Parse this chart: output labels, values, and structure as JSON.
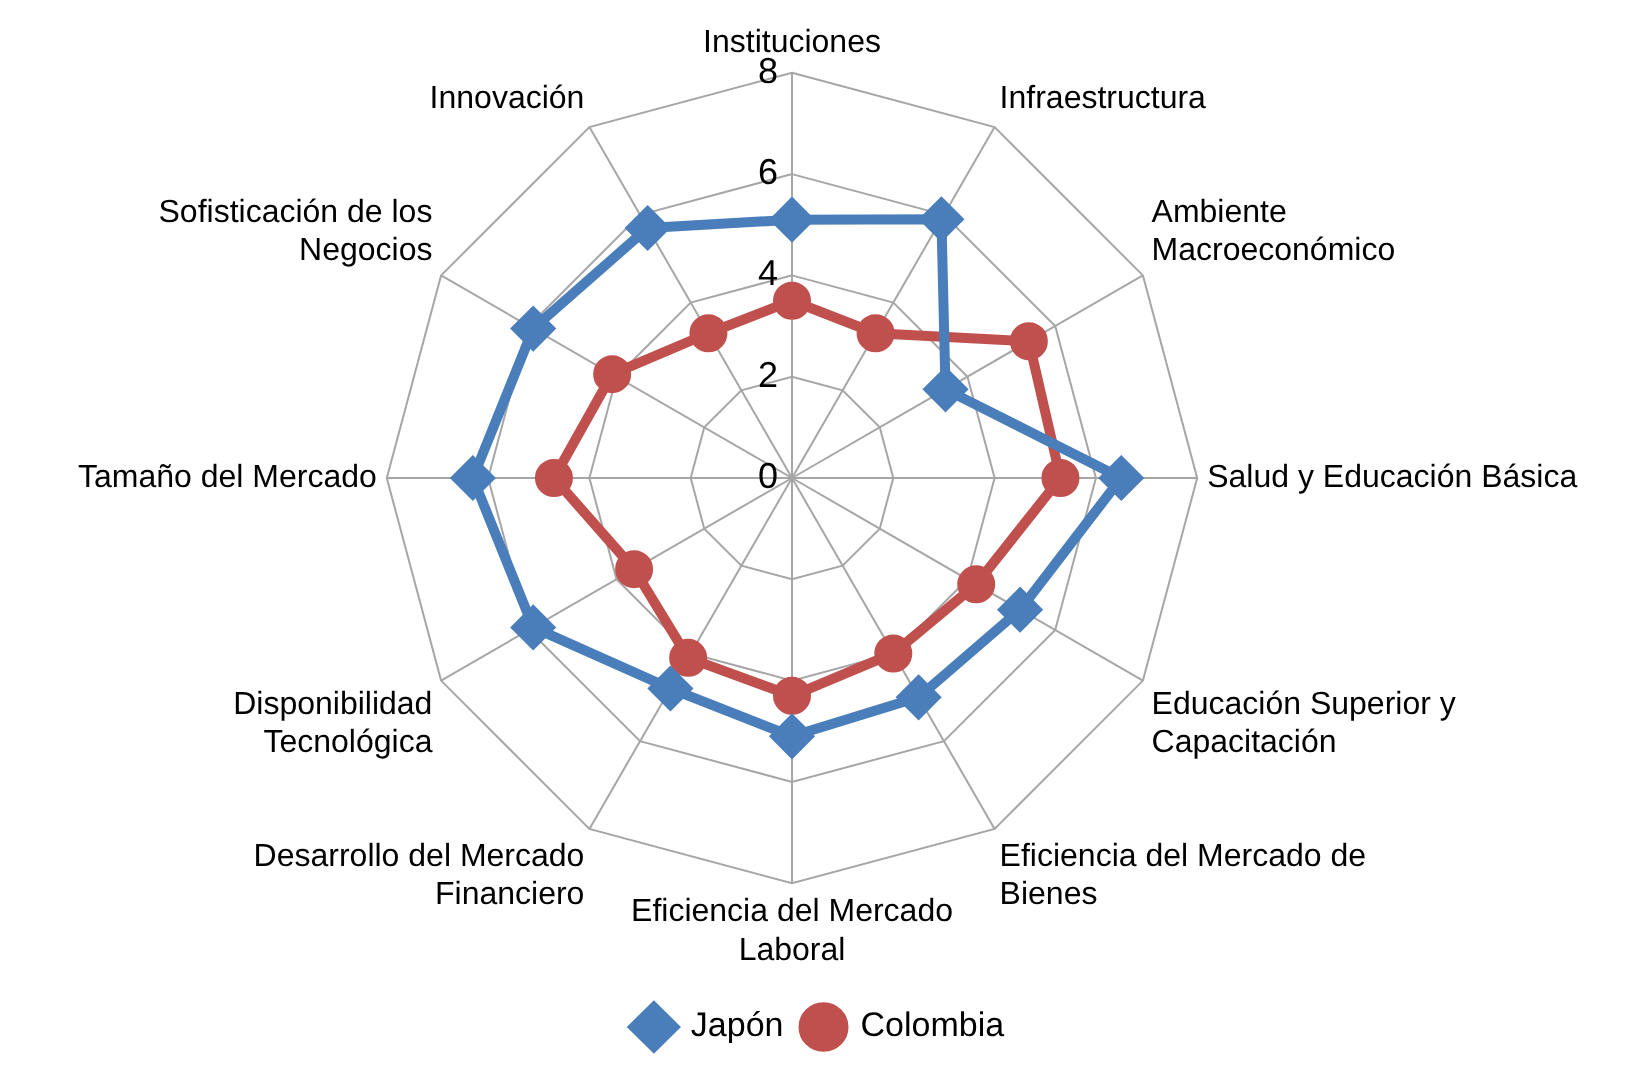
{
  "chart_data": {
    "type": "radar",
    "categories": [
      "Instituciones",
      "Infraestructura",
      "Ambiente\nMacroeconómico",
      "Salud y Educación Básica",
      "Educación Superior y\nCapacitación",
      "Eficiencia del Mercado de\nBienes",
      "Eficiencia del Mercado\nLaboral",
      "Desarrollo del Mercado\nFinanciero",
      "Disponibilidad\nTecnológica",
      "Tamaño del Mercado",
      "Sofisticación de los\nNegocios",
      "Innovación"
    ],
    "series": [
      {
        "name": "Japón",
        "color": "#4a7ebb",
        "marker": "diamond",
        "values": [
          5.1,
          5.9,
          3.5,
          6.5,
          5.2,
          5.0,
          5.1,
          4.8,
          5.9,
          6.3,
          5.9,
          5.7
        ]
      },
      {
        "name": "Colombia",
        "color": "#c0504d",
        "marker": "circle",
        "values": [
          3.5,
          3.3,
          5.4,
          5.3,
          4.2,
          4.0,
          4.3,
          4.1,
          3.6,
          4.7,
          4.1,
          3.3
        ]
      }
    ],
    "ylim": [
      0,
      8
    ],
    "yticks": [
      0,
      2,
      4,
      6,
      8
    ],
    "grid": true,
    "legend": "bottom"
  }
}
